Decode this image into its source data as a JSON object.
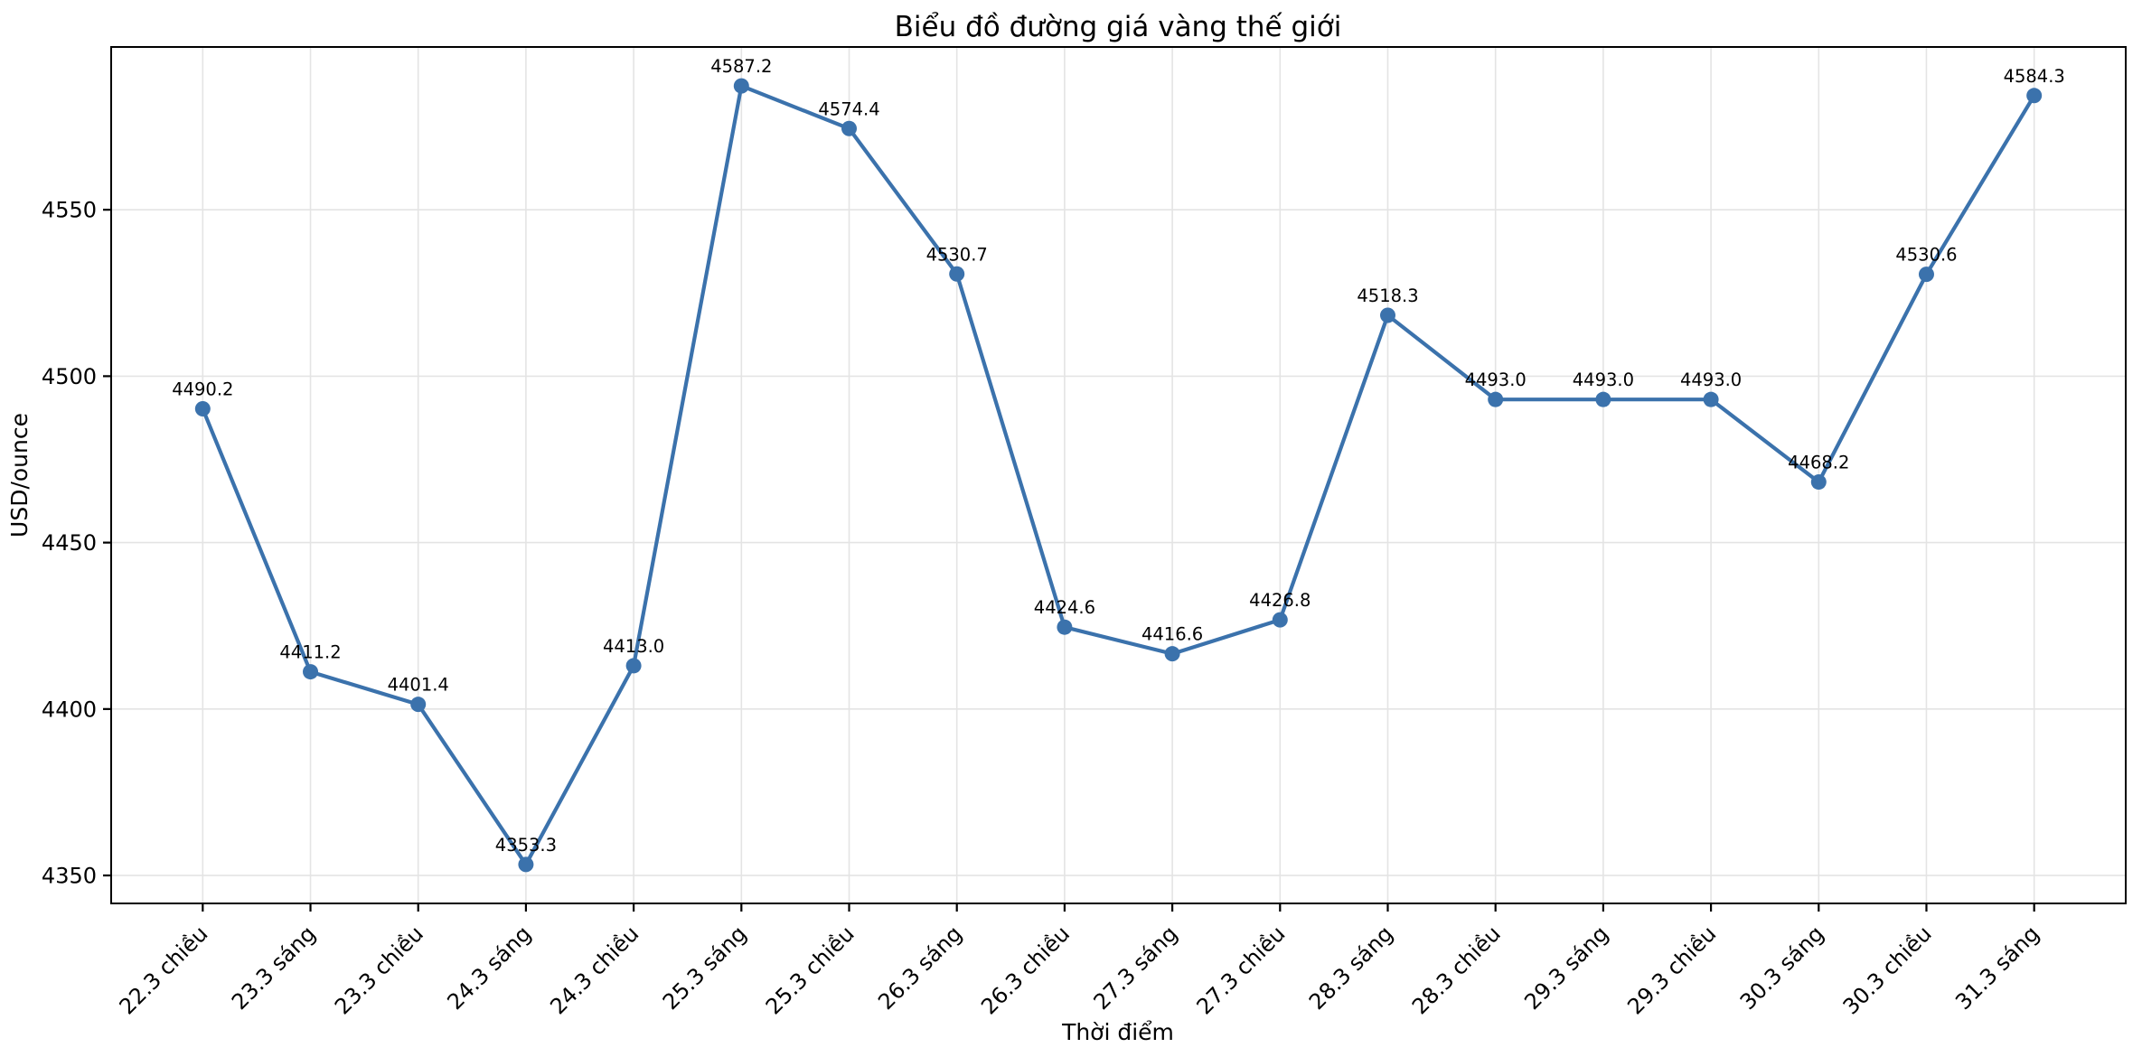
{
  "chart_data": {
    "type": "line",
    "title": "Biểu đồ đường giá vàng thế giới",
    "xlabel": "Thời điểm",
    "ylabel": "USD/ounce",
    "categories": [
      "22.3 chiều",
      "23.3 sáng",
      "23.3 chiều",
      "24.3 sáng",
      "24.3 chiều",
      "25.3 sáng",
      "25.3 chiều",
      "26.3 sáng",
      "26.3 chiều",
      "27.3 sáng",
      "27.3 chiều",
      "28.3 sáng",
      "28.3 chiều",
      "29.3 sáng",
      "29.3 chiều",
      "30.3 sáng",
      "30.3 chiều",
      "31.3 sáng"
    ],
    "values": [
      4490.2,
      4411.2,
      4401.4,
      4353.3,
      4413.0,
      4587.2,
      4574.4,
      4530.7,
      4424.6,
      4416.6,
      4426.8,
      4518.3,
      4493.0,
      4493.0,
      4493.0,
      4468.2,
      4530.6,
      4584.3
    ],
    "point_labels": [
      "4490.2",
      "4411.2",
      "4401.4",
      "4353.3",
      "4413.0",
      "4587.2",
      "4574.4",
      "4530.7",
      "4424.6",
      "4416.6",
      "4426.8",
      "4518.3",
      "4493.0",
      "4493.0",
      "4493.0",
      "4468.2",
      "4530.6",
      "4584.3"
    ],
    "y_ticks": [
      4350,
      4400,
      4450,
      4500,
      4550
    ],
    "ylim": [
      4341.6,
      4598.9
    ],
    "grid": true,
    "legend_position": "none",
    "colors": {
      "line": "#3b72ac",
      "marker": "#3b72ac",
      "grid": "#e4e4e4",
      "spine": "#000000",
      "text": "#000000",
      "background": "#ffffff"
    }
  }
}
